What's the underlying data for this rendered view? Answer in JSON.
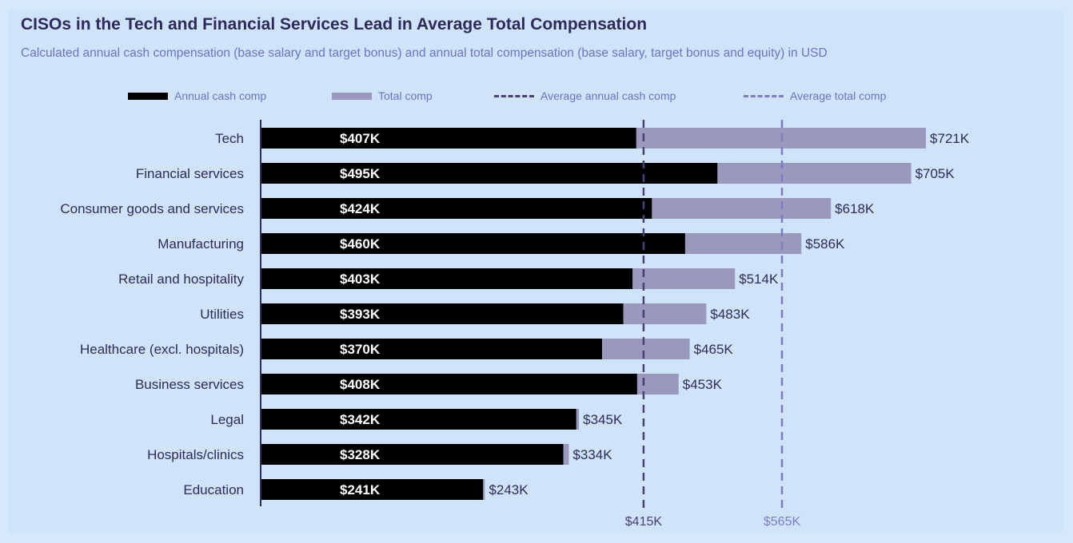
{
  "title": "CISOs in the Tech and Financial Services Lead in Average Total Compensation",
  "subtitle": "Calculated annual cash compensation (base salary and target bonus) and annual total compensation (base salary, target bonus and equity) in USD",
  "legend": {
    "cash": "Annual cash comp",
    "total": "Total comp",
    "avg_cash": "Average annual cash comp",
    "avg_total": "Average total comp"
  },
  "colors": {
    "cash": "#000000",
    "total": "#9a98bd",
    "avg_cash": "#4b3f7a",
    "avg_total": "#7f7cc6",
    "text": "#2e2a5e"
  },
  "chart_data": {
    "type": "bar",
    "orientation": "horizontal",
    "categories": [
      "Tech",
      "Financial services",
      "Consumer goods and services",
      "Manufacturing",
      "Retail and hospitality",
      "Utilities",
      "Healthcare (excl. hospitals)",
      "Business services",
      "Legal",
      "Hospitals/clinics",
      "Education"
    ],
    "series": [
      {
        "name": "Annual cash comp",
        "values": [
          407,
          495,
          424,
          460,
          403,
          393,
          370,
          408,
          342,
          328,
          241
        ],
        "labels": [
          "$407K",
          "$495K",
          "$424K",
          "$460K",
          "$403K",
          "$393K",
          "$370K",
          "$408K",
          "$342K",
          "$328K",
          "$241K"
        ]
      },
      {
        "name": "Total comp",
        "values": [
          721,
          705,
          618,
          586,
          514,
          483,
          465,
          453,
          345,
          334,
          243
        ],
        "labels": [
          "$721K",
          "$705K",
          "$618K",
          "$586K",
          "$514K",
          "$483K",
          "$465K",
          "$453K",
          "$345K",
          "$334K",
          "$243K"
        ]
      }
    ],
    "reference_lines": [
      {
        "name": "Average annual cash comp",
        "value": 415,
        "label": "$415K"
      },
      {
        "name": "Average total comp",
        "value": 565,
        "label": "$565K"
      }
    ],
    "unit": "thousand USD",
    "xlim": [
      0,
      721
    ]
  }
}
